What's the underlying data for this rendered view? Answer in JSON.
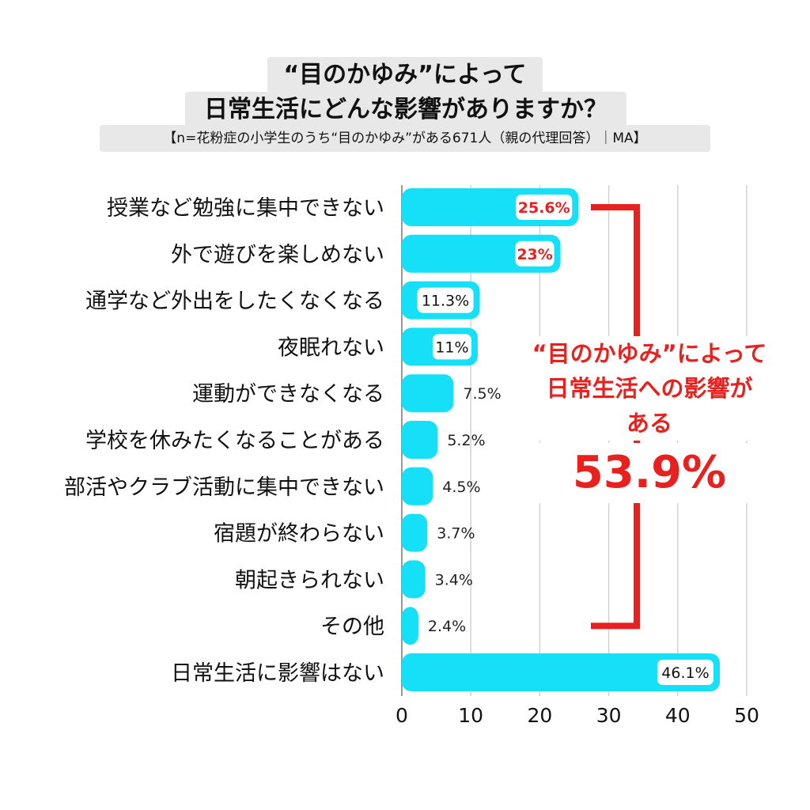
{
  "title": {
    "line1": "“目のかゆみ”によって",
    "line2": "日常生活にどんな影響がありますか？",
    "subtitle": "【n=花粉症の小学生のうち“目のかゆみ”がある671人（親の代理回答）｜MA】"
  },
  "annotation": {
    "text": "“目のかゆみ”によって日常生活への影響がある",
    "value": "53.9%",
    "color": "#e8211f"
  },
  "chart_data": {
    "type": "bar",
    "orientation": "horizontal",
    "categories": [
      "授業など勉強に集中できない",
      "外で遊びを楽しめない",
      "通学など外出をしたくなくなる",
      "夜眠れない",
      "運動ができなくなる",
      "学校を休みたくなることがある",
      "部活やクラブ活動に集中できない",
      "宿題が終わらない",
      "朝起きられない",
      "その他",
      "日常生活に影響はない"
    ],
    "values": [
      25.6,
      23,
      11.3,
      11,
      7.5,
      5.2,
      4.5,
      3.7,
      3.4,
      2.4,
      46.1
    ],
    "value_labels": [
      "25.6%",
      "23%",
      "11.3%",
      "11%",
      "7.5%",
      "5.2%",
      "4.5%",
      "3.7%",
      "3.4%",
      "2.4%",
      "46.1%"
    ],
    "label_styles": [
      "red",
      "red",
      "boxed",
      "boxed",
      "plain",
      "plain",
      "plain",
      "plain",
      "plain",
      "plain",
      "boxed"
    ],
    "xlim": [
      0,
      50
    ],
    "xticks": [
      0,
      10,
      20,
      30,
      40,
      50
    ],
    "grid": true,
    "bar_color": "#16e0f7",
    "highlight_color": "#e8211f",
    "bracket_covers_categories": [
      0,
      9
    ],
    "xlabel": "",
    "ylabel": ""
  }
}
